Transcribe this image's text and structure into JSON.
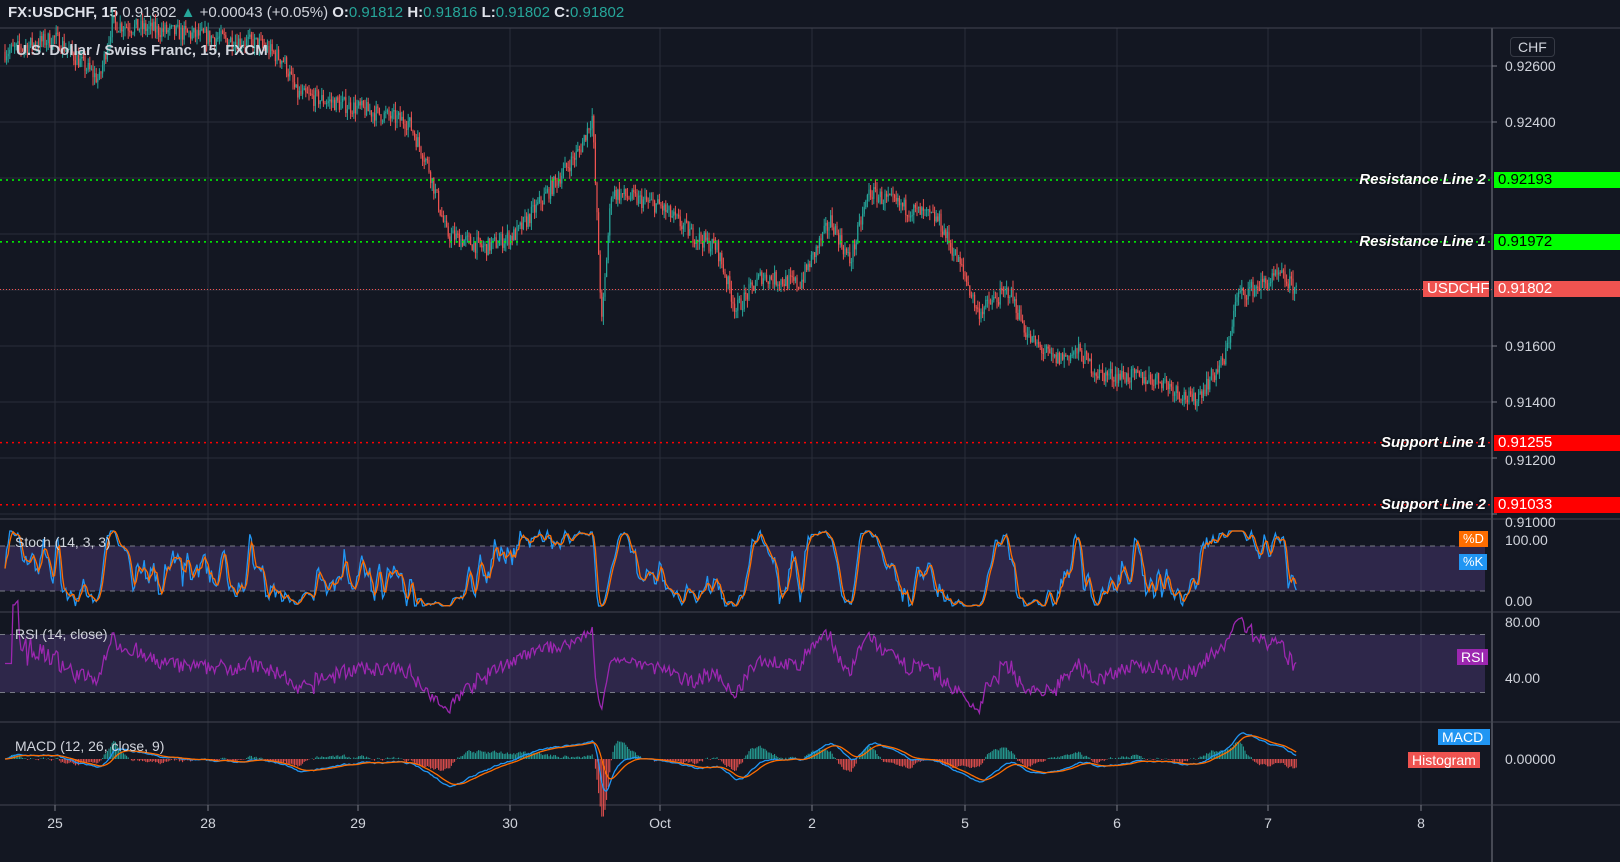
{
  "header": {
    "symbol": "FX:USDCHF, 15",
    "last": "0.91802",
    "change": "+0.00043 (+0.05%)",
    "o_label": "O:",
    "open": "0.91812",
    "h_label": "H:",
    "high": "0.91816",
    "l_label": "L:",
    "low": "0.91802",
    "c_label": "C:",
    "close": "0.91802"
  },
  "subtitle": "U.S. Dollar / Swiss Franc, 15, FXCM",
  "currency": "CHF",
  "colors": {
    "up": "#26a69a",
    "down": "#ef5350",
    "resistance": "#00ff00",
    "support": "#ff0000",
    "stoch_k": "#2196f3",
    "stoch_d": "#ff6d00",
    "rsi": "#9c27b0",
    "macd": "#2196f3",
    "signal": "#ff6d00"
  },
  "chart_data": {
    "type": "candlestick",
    "price_axis": {
      "ticks": [
        "0.92600",
        "0.92400",
        "0.91600",
        "0.91400",
        "0.91200",
        "0.91000"
      ],
      "range": [
        0.91,
        0.928
      ]
    },
    "time_axis": {
      "ticks": [
        "25",
        "28",
        "29",
        "30",
        "Oct",
        "2",
        "5",
        "6",
        "7",
        "8"
      ]
    },
    "approx_close_path": [
      [
        "Sep 24 16:00",
        0.9265
      ],
      [
        "Sep 25 00:00",
        0.927
      ],
      [
        "Sep 25 07:00",
        0.9255
      ],
      [
        "Sep 25 09:00",
        0.9275
      ],
      [
        "Sep 28 08:00",
        0.9268
      ],
      [
        "Sep 28 12:00",
        0.9262
      ],
      [
        "Sep 28 14:00",
        0.925
      ],
      [
        "Sep 29 00:00",
        0.9245
      ],
      [
        "Sep 29 08:00",
        0.924
      ],
      [
        "Sep 29 11:00",
        0.9225
      ],
      [
        "Sep 29 14:00",
        0.92
      ],
      [
        "Sep 29 20:00",
        0.9195
      ],
      [
        "Sep 30 01:00",
        0.92
      ],
      [
        "Sep 30 06:00",
        0.9215
      ],
      [
        "Sep 30 11:00",
        0.923
      ],
      [
        "Sep 30 13:00",
        0.9242
      ],
      [
        "Sep 30 14:30",
        0.9168
      ],
      [
        "Sep 30 16:00",
        0.9215
      ],
      [
        "Oct 1 00:00",
        0.921
      ],
      [
        "Oct 1 05:00",
        0.92
      ],
      [
        "Oct 1 09:00",
        0.9195
      ],
      [
        "Oct 1 12:00",
        0.9173
      ],
      [
        "Oct 1 16:00",
        0.9185
      ],
      [
        "Oct 1 22:00",
        0.9182
      ],
      [
        "Oct 2 03:00",
        0.9205
      ],
      [
        "Oct 2 06:00",
        0.919
      ],
      [
        "Oct 2 09:00",
        0.9215
      ],
      [
        "Oct 2 14:00",
        0.921
      ],
      [
        "Oct 2 20:00",
        0.9205
      ],
      [
        "Oct 5 00:00",
        0.9185
      ],
      [
        "Oct 5 02:00",
        0.9172
      ],
      [
        "Oct 5 07:00",
        0.918
      ],
      [
        "Oct 5 10:00",
        0.9163
      ],
      [
        "Oct 5 14:00",
        0.9155
      ],
      [
        "Oct 5 18:00",
        0.9158
      ],
      [
        "Oct 5 21:00",
        0.915
      ],
      [
        "Oct 6 07:00",
        0.9148
      ],
      [
        "Oct 6 12:00",
        0.914
      ],
      [
        "Oct 6 17:00",
        0.9155
      ],
      [
        "Oct 6 19:00",
        0.9178
      ],
      [
        "Oct 7 02:00",
        0.9185
      ],
      [
        "Oct 7 04:30",
        0.918
      ]
    ],
    "horizontal_lines": [
      {
        "name": "Resistance Line 2",
        "value": "0.92193",
        "kind": "resistance"
      },
      {
        "name": "Resistance Line 1",
        "value": "0.91972",
        "kind": "resistance"
      },
      {
        "name": "Support Line 1",
        "value": "0.91255",
        "kind": "support"
      },
      {
        "name": "Support Line 2",
        "value": "0.91033",
        "kind": "support"
      }
    ],
    "last_price_label": "USDCHF",
    "last_price": "0.91802",
    "indicators": {
      "stoch": {
        "title": "Stoch (14, 3, 3)",
        "ticks": [
          "100.00",
          "0.00"
        ],
        "bands": [
          20,
          80
        ],
        "legend": [
          "%D",
          "%K"
        ]
      },
      "rsi": {
        "title": "RSI (14, close)",
        "ticks": [
          "80.00",
          "40.00"
        ],
        "bands": [
          30,
          70
        ],
        "legend": "RSI"
      },
      "macd": {
        "title": "MACD (12, 26, close, 9)",
        "ticks": [
          "0.00000"
        ],
        "legend": [
          "MACD",
          "Histogram"
        ]
      }
    }
  }
}
